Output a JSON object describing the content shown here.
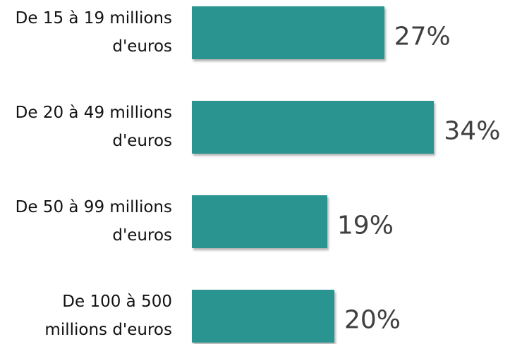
{
  "chart_data": {
    "type": "bar",
    "orientation": "horizontal",
    "categories": [
      "De 15 à 19 millions d'euros",
      "De 20 à 49 millions d'euros",
      "De 50 à 99 millions d'euros",
      "De 100 à 500 millions d'euros"
    ],
    "values": [
      27,
      34,
      19,
      20
    ],
    "value_labels": [
      "27%",
      "34%",
      "19%",
      "20%"
    ],
    "color": "#2a9490"
  }
}
